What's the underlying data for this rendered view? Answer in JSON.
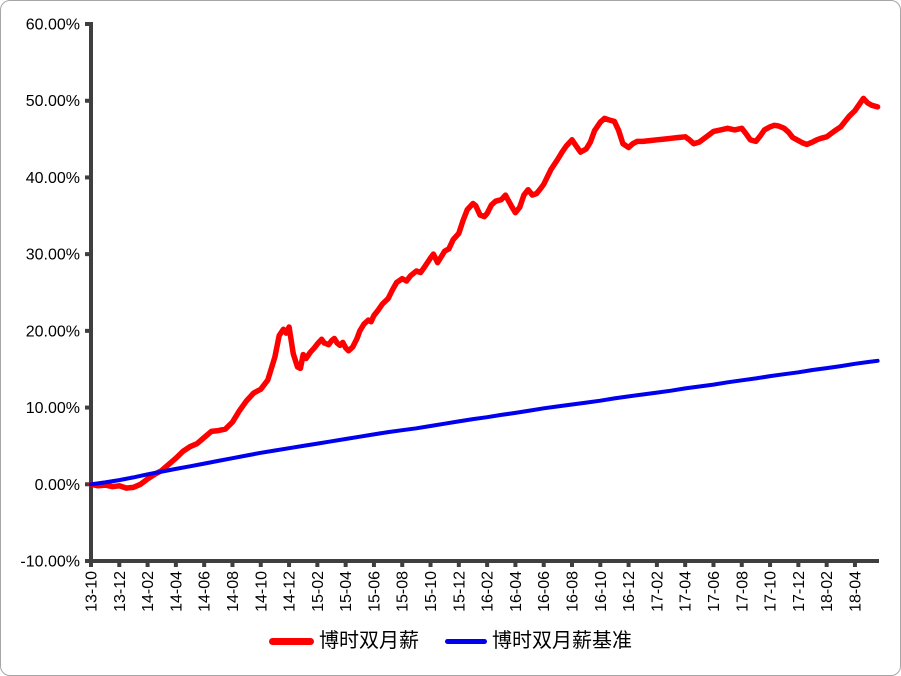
{
  "chart_data": {
    "type": "line",
    "title": "",
    "xlabel": "",
    "ylabel": "",
    "grid": false,
    "legend_position": "bottom-center",
    "axis_color": "#3f3f3f",
    "text_color": "#000000",
    "frame_border_color": "#a6a6a6",
    "ylim": [
      -10,
      60
    ],
    "xlim_months": [
      0,
      55.7
    ],
    "y_ticks": [
      {
        "value": 60,
        "label": "60.00%"
      },
      {
        "value": 50,
        "label": "50.00%"
      },
      {
        "value": 40,
        "label": "40.00%"
      },
      {
        "value": 30,
        "label": "30.00%"
      },
      {
        "value": 20,
        "label": "20.00%"
      },
      {
        "value": 10,
        "label": "10.00%"
      },
      {
        "value": 0,
        "label": "0.00%"
      },
      {
        "value": -10,
        "label": "-10.00%"
      }
    ],
    "x_ticks": [
      {
        "month": 0,
        "label": "13-10"
      },
      {
        "month": 2,
        "label": "13-12"
      },
      {
        "month": 4,
        "label": "14-02"
      },
      {
        "month": 6,
        "label": "14-04"
      },
      {
        "month": 8,
        "label": "14-06"
      },
      {
        "month": 10,
        "label": "14-08"
      },
      {
        "month": 12,
        "label": "14-10"
      },
      {
        "month": 14,
        "label": "14-12"
      },
      {
        "month": 16,
        "label": "15-02"
      },
      {
        "month": 18,
        "label": "15-04"
      },
      {
        "month": 20,
        "label": "15-06"
      },
      {
        "month": 22,
        "label": "15-08"
      },
      {
        "month": 24,
        "label": "15-10"
      },
      {
        "month": 26,
        "label": "15-12"
      },
      {
        "month": 28,
        "label": "16-02"
      },
      {
        "month": 30,
        "label": "16-04"
      },
      {
        "month": 32,
        "label": "16-06"
      },
      {
        "month": 34,
        "label": "16-08"
      },
      {
        "month": 36,
        "label": "16-10"
      },
      {
        "month": 38,
        "label": "16-12"
      },
      {
        "month": 40,
        "label": "17-02"
      },
      {
        "month": 42,
        "label": "17-04"
      },
      {
        "month": 44,
        "label": "17-06"
      },
      {
        "month": 46,
        "label": "17-08"
      },
      {
        "month": 48,
        "label": "17-10"
      },
      {
        "month": 50,
        "label": "17-12"
      },
      {
        "month": 52,
        "label": "18-02"
      },
      {
        "month": 54,
        "label": "18-04"
      }
    ],
    "series": [
      {
        "name": "博时双月薪",
        "color": "#ff0000",
        "stroke_width": 5.5,
        "points": [
          [
            0,
            0
          ],
          [
            0.5,
            -0.2
          ],
          [
            1,
            -0.1
          ],
          [
            1.5,
            -0.3
          ],
          [
            2,
            -0.2
          ],
          [
            2.5,
            -0.5
          ],
          [
            3,
            -0.4
          ],
          [
            3.5,
            0
          ],
          [
            4,
            0.7
          ],
          [
            4.5,
            1.3
          ],
          [
            5,
            1.8
          ],
          [
            5.5,
            2.6
          ],
          [
            6,
            3.4
          ],
          [
            6.5,
            4.3
          ],
          [
            7,
            4.9
          ],
          [
            7.5,
            5.3
          ],
          [
            8,
            6.1
          ],
          [
            8.5,
            6.9
          ],
          [
            9,
            7.0
          ],
          [
            9.5,
            7.2
          ],
          [
            10,
            8.1
          ],
          [
            10.5,
            9.6
          ],
          [
            11,
            10.9
          ],
          [
            11.5,
            11.9
          ],
          [
            12,
            12.4
          ],
          [
            12.5,
            13.6
          ],
          [
            13,
            16.6
          ],
          [
            13.3,
            19.4
          ],
          [
            13.6,
            20.2
          ],
          [
            13.8,
            19.7
          ],
          [
            14,
            20.5
          ],
          [
            14.3,
            17.0
          ],
          [
            14.6,
            15.3
          ],
          [
            14.8,
            15.1
          ],
          [
            15,
            16.9
          ],
          [
            15.2,
            16.4
          ],
          [
            15.5,
            17.2
          ],
          [
            15.8,
            17.8
          ],
          [
            16,
            18.3
          ],
          [
            16.3,
            18.9
          ],
          [
            16.5,
            18.4
          ],
          [
            16.8,
            18.2
          ],
          [
            17,
            18.7
          ],
          [
            17.2,
            19.0
          ],
          [
            17.4,
            18.4
          ],
          [
            17.6,
            18.1
          ],
          [
            17.8,
            18.5
          ],
          [
            18,
            17.8
          ],
          [
            18.2,
            17.4
          ],
          [
            18.5,
            17.9
          ],
          [
            18.8,
            19.0
          ],
          [
            19,
            20.0
          ],
          [
            19.3,
            20.9
          ],
          [
            19.6,
            21.4
          ],
          [
            19.8,
            21.2
          ],
          [
            20,
            22.0
          ],
          [
            20.3,
            22.7
          ],
          [
            20.6,
            23.5
          ],
          [
            21,
            24.2
          ],
          [
            21.3,
            25.3
          ],
          [
            21.6,
            26.3
          ],
          [
            22,
            26.8
          ],
          [
            22.3,
            26.5
          ],
          [
            22.6,
            27.2
          ],
          [
            23,
            27.8
          ],
          [
            23.3,
            27.6
          ],
          [
            23.6,
            28.4
          ],
          [
            24,
            29.5
          ],
          [
            24.2,
            30.0
          ],
          [
            24.5,
            28.9
          ],
          [
            24.8,
            29.8
          ],
          [
            25,
            30.4
          ],
          [
            25.3,
            30.7
          ],
          [
            25.6,
            31.9
          ],
          [
            26,
            32.7
          ],
          [
            26.3,
            34.4
          ],
          [
            26.6,
            35.8
          ],
          [
            27,
            36.6
          ],
          [
            27.2,
            36.3
          ],
          [
            27.5,
            35.1
          ],
          [
            27.8,
            34.9
          ],
          [
            28,
            35.3
          ],
          [
            28.3,
            36.4
          ],
          [
            28.6,
            36.9
          ],
          [
            29,
            37.1
          ],
          [
            29.3,
            37.7
          ],
          [
            29.5,
            37.0
          ],
          [
            29.8,
            36.0
          ],
          [
            30,
            35.4
          ],
          [
            30.3,
            36.1
          ],
          [
            30.6,
            37.7
          ],
          [
            30.9,
            38.4
          ],
          [
            31.2,
            37.7
          ],
          [
            31.5,
            37.9
          ],
          [
            31.8,
            38.6
          ],
          [
            32,
            39.1
          ],
          [
            32.5,
            41.0
          ],
          [
            33,
            42.4
          ],
          [
            33.3,
            43.3
          ],
          [
            33.6,
            44.1
          ],
          [
            34,
            44.9
          ],
          [
            34.3,
            44.1
          ],
          [
            34.6,
            43.3
          ],
          [
            35,
            43.7
          ],
          [
            35.3,
            44.6
          ],
          [
            35.6,
            46.1
          ],
          [
            36,
            47.2
          ],
          [
            36.3,
            47.7
          ],
          [
            36.6,
            47.5
          ],
          [
            37,
            47.3
          ],
          [
            37.3,
            46.1
          ],
          [
            37.6,
            44.4
          ],
          [
            38,
            43.9
          ],
          [
            38.3,
            44.4
          ],
          [
            38.6,
            44.7
          ],
          [
            39,
            44.7
          ],
          [
            39.5,
            44.8
          ],
          [
            40,
            44.9
          ],
          [
            40.5,
            45.0
          ],
          [
            41,
            45.1
          ],
          [
            41.5,
            45.2
          ],
          [
            42,
            45.3
          ],
          [
            42.3,
            44.9
          ],
          [
            42.6,
            44.4
          ],
          [
            43,
            44.6
          ],
          [
            43.5,
            45.3
          ],
          [
            44,
            46.0
          ],
          [
            44.5,
            46.2
          ],
          [
            45,
            46.4
          ],
          [
            45.5,
            46.2
          ],
          [
            46,
            46.4
          ],
          [
            46.3,
            45.7
          ],
          [
            46.6,
            44.9
          ],
          [
            47,
            44.7
          ],
          [
            47.3,
            45.4
          ],
          [
            47.6,
            46.2
          ],
          [
            48,
            46.6
          ],
          [
            48.3,
            46.8
          ],
          [
            48.6,
            46.7
          ],
          [
            49,
            46.4
          ],
          [
            49.3,
            45.9
          ],
          [
            49.6,
            45.2
          ],
          [
            50,
            44.8
          ],
          [
            50.3,
            44.5
          ],
          [
            50.6,
            44.3
          ],
          [
            51,
            44.6
          ],
          [
            51.3,
            44.9
          ],
          [
            51.6,
            45.1
          ],
          [
            52,
            45.3
          ],
          [
            52.3,
            45.7
          ],
          [
            52.6,
            46.1
          ],
          [
            53,
            46.6
          ],
          [
            53.3,
            47.3
          ],
          [
            53.6,
            48.0
          ],
          [
            54,
            48.7
          ],
          [
            54.3,
            49.5
          ],
          [
            54.6,
            50.3
          ],
          [
            54.9,
            49.7
          ],
          [
            55.2,
            49.4
          ],
          [
            55.6,
            49.2
          ]
        ]
      },
      {
        "name": "博时双月薪基准",
        "color": "#0000ee",
        "stroke_width": 4,
        "points": [
          [
            0,
            0
          ],
          [
            1,
            0.25
          ],
          [
            2,
            0.55
          ],
          [
            3,
            0.9
          ],
          [
            4,
            1.3
          ],
          [
            5,
            1.65
          ],
          [
            6,
            2.0
          ],
          [
            7,
            2.35
          ],
          [
            8,
            2.7
          ],
          [
            9,
            3.05
          ],
          [
            10,
            3.4
          ],
          [
            11,
            3.75
          ],
          [
            12,
            4.1
          ],
          [
            13,
            4.4
          ],
          [
            14,
            4.7
          ],
          [
            15,
            5.0
          ],
          [
            16,
            5.3
          ],
          [
            17,
            5.6
          ],
          [
            18,
            5.9
          ],
          [
            19,
            6.2
          ],
          [
            20,
            6.5
          ],
          [
            21,
            6.8
          ],
          [
            22,
            7.05
          ],
          [
            23,
            7.3
          ],
          [
            24,
            7.6
          ],
          [
            25,
            7.9
          ],
          [
            26,
            8.2
          ],
          [
            27,
            8.5
          ],
          [
            28,
            8.75
          ],
          [
            29,
            9.05
          ],
          [
            30,
            9.3
          ],
          [
            31,
            9.6
          ],
          [
            32,
            9.9
          ],
          [
            33,
            10.15
          ],
          [
            34,
            10.4
          ],
          [
            35,
            10.65
          ],
          [
            36,
            10.9
          ],
          [
            37,
            11.2
          ],
          [
            38,
            11.45
          ],
          [
            39,
            11.7
          ],
          [
            40,
            11.95
          ],
          [
            41,
            12.2
          ],
          [
            42,
            12.5
          ],
          [
            43,
            12.75
          ],
          [
            44,
            13.0
          ],
          [
            45,
            13.3
          ],
          [
            46,
            13.55
          ],
          [
            47,
            13.8
          ],
          [
            48,
            14.1
          ],
          [
            49,
            14.35
          ],
          [
            50,
            14.6
          ],
          [
            51,
            14.9
          ],
          [
            52,
            15.15
          ],
          [
            53,
            15.4
          ],
          [
            54,
            15.7
          ],
          [
            55,
            15.95
          ],
          [
            55.6,
            16.1
          ]
        ]
      }
    ],
    "legend": [
      {
        "label": "博时双月薪",
        "color": "#ff0000"
      },
      {
        "label": "博时双月薪基准",
        "color": "#0000ee"
      }
    ]
  }
}
